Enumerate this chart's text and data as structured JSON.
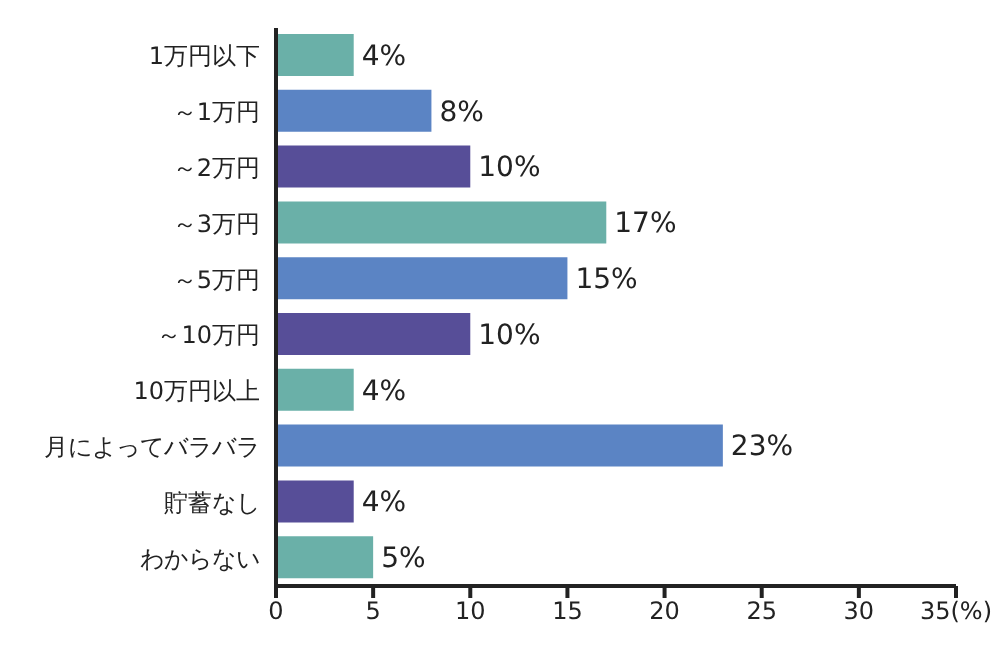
{
  "chart_data": {
    "type": "bar",
    "orientation": "horizontal",
    "categories": [
      "1万円以下",
      "～1万円",
      "～2万円",
      "～3万円",
      "～5万円",
      "～10万円",
      "10万円以上",
      "月によってバラバラ",
      "貯蓄なし",
      "わからない"
    ],
    "values": [
      4,
      8,
      10,
      17,
      15,
      10,
      4,
      23,
      4,
      5
    ],
    "colors": [
      "#6ab0a8",
      "#5b84c4",
      "#574e98",
      "#6ab0a8",
      "#5b84c4",
      "#574e98",
      "#6ab0a8",
      "#5b84c4",
      "#574e98",
      "#6ab0a8"
    ],
    "value_labels": [
      "4%",
      "8%",
      "10%",
      "17%",
      "15%",
      "10%",
      "4%",
      "23%",
      "4%",
      "5%"
    ],
    "xlim": [
      0,
      35
    ],
    "xticks": [
      0,
      5,
      10,
      15,
      20,
      25,
      30,
      {
        "value": 35,
        "label": "35(%)"
      }
    ],
    "grid": false
  }
}
